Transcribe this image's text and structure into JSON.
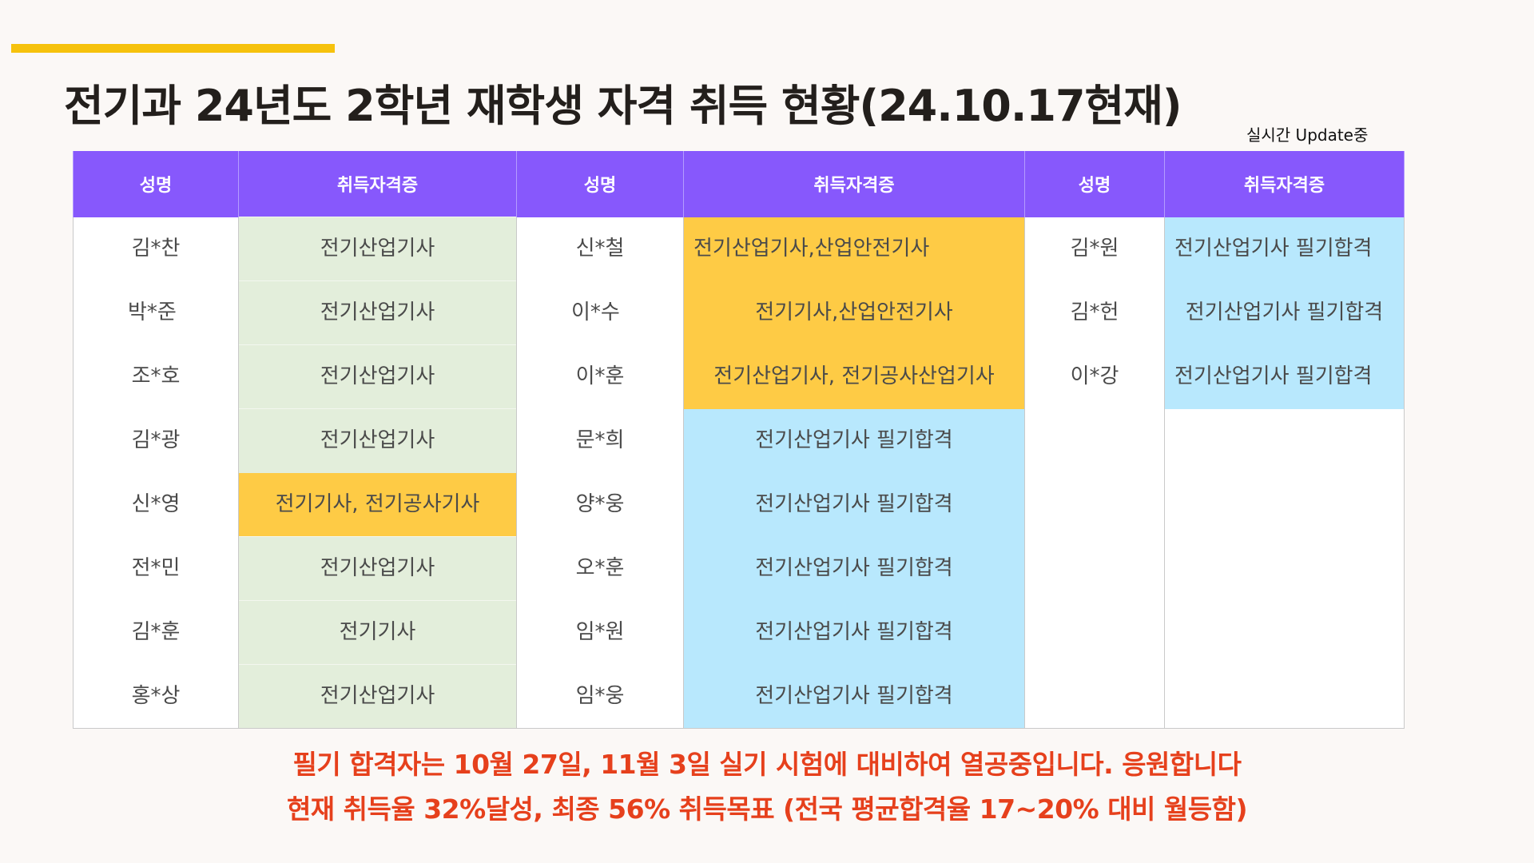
{
  "title": "전기과 24년도 2학년 재학생 자격 취득 현황(24.10.17현재)",
  "update_note": "실시간 Update중",
  "table": {
    "headers": [
      "성명",
      "취득자격증",
      "성명",
      "취득자격증",
      "성명",
      "취득자격증"
    ],
    "rows": [
      [
        "김*찬",
        "전기산업기사",
        "신*철",
        "전기산업기사,산업안전기사",
        "김*원",
        "전기산업기사 필기합격"
      ],
      [
        "박*준",
        "전기산업기사",
        "이*수",
        "전기기사,산업안전기사",
        "김*헌",
        "전기산업기사 필기합격"
      ],
      [
        "조*호",
        "전기산업기사",
        "이*훈",
        "전기산업기사, 전기공사산업기사",
        "이*강",
        "전기산업기사 필기합격"
      ],
      [
        "김*광",
        "전기산업기사",
        "문*희",
        "전기산업기사 필기합격",
        "",
        ""
      ],
      [
        "신*영",
        "전기기사, 전기공사기사",
        "양*웅",
        "전기산업기사 필기합격",
        "",
        ""
      ],
      [
        "전*민",
        "전기산업기사",
        "오*훈",
        "전기산업기사 필기합격",
        "",
        ""
      ],
      [
        "김*훈",
        "전기기사",
        "임*원",
        "전기산업기사 필기합격",
        "",
        ""
      ],
      [
        "홍*상",
        "전기산업기사",
        "임*웅",
        "전기산업기사 필기합격",
        "",
        ""
      ]
    ]
  },
  "colors": {
    "header_bg": "#8758fc",
    "acquired_green": "#e3eedb",
    "multiple_orange": "#fecb45",
    "written_pass_blue": "#b8e8fd",
    "accent_yellow": "#f6c20d",
    "footer_red": "#e6401c"
  },
  "footer": {
    "line1": "필기 합격자는 10월 27일, 11월 3일 실기 시험에 대비하여 열공중입니다. 응원합니다",
    "line2": "현재 취득율 32%달성, 최종 56% 취득목표 (전국 평균합격율 17~20% 대비 월등함)"
  }
}
